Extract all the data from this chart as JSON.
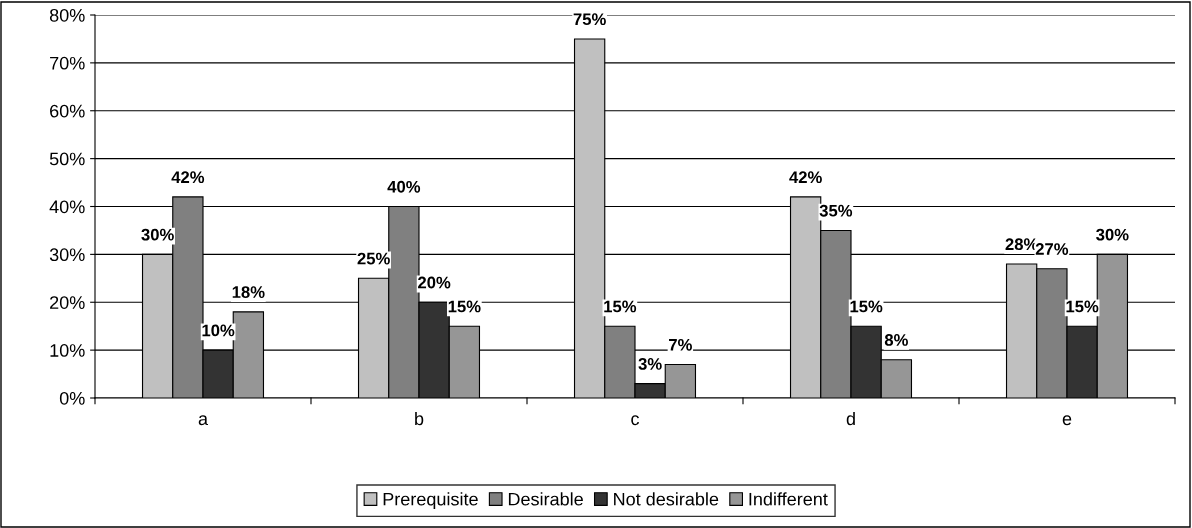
{
  "chart_data": {
    "type": "bar",
    "categories": [
      "a",
      "b",
      "c",
      "d",
      "e"
    ],
    "series": [
      {
        "name": "Prerequisite",
        "color": "#c0c0c0",
        "values": [
          30,
          25,
          75,
          42,
          28
        ],
        "value_labels": [
          "30%",
          "25%",
          "75%",
          "42%",
          "28%"
        ]
      },
      {
        "name": "Desirable",
        "color": "#808080",
        "values": [
          42,
          40,
          15,
          35,
          27
        ],
        "value_labels": [
          "42%",
          "40%",
          "15%",
          "35%",
          "27%"
        ]
      },
      {
        "name": "Not desirable",
        "color": "#333333",
        "values": [
          10,
          20,
          3,
          15,
          15
        ],
        "value_labels": [
          "10%",
          "20%",
          "3%",
          "15%",
          "15%"
        ]
      },
      {
        "name": "Indifferent",
        "color": "#969696",
        "values": [
          18,
          15,
          7,
          8,
          30
        ],
        "value_labels": [
          "18%",
          "15%",
          "7%",
          "8%",
          "30%"
        ]
      }
    ],
    "ylim": [
      0,
      80
    ],
    "yticks": [
      {
        "value": 0,
        "label": "0%"
      },
      {
        "value": 10,
        "label": "10%"
      },
      {
        "value": 20,
        "label": "20%"
      },
      {
        "value": 30,
        "label": "30%"
      },
      {
        "value": 40,
        "label": "40%"
      },
      {
        "value": 50,
        "label": "50%"
      },
      {
        "value": 60,
        "label": "60%"
      },
      {
        "value": 70,
        "label": "70%"
      },
      {
        "value": 80,
        "label": "80%"
      }
    ],
    "grid": "y",
    "legend": "bottom"
  }
}
